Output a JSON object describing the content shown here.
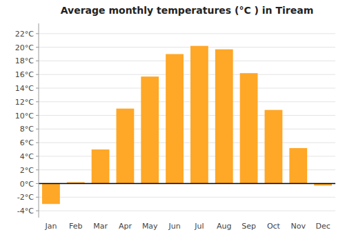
{
  "chart_data": {
    "type": "bar",
    "title": "Average monthly temperatures (°C ) in Tiream",
    "categories": [
      "Jan",
      "Feb",
      "Mar",
      "Apr",
      "May",
      "Jun",
      "Jul",
      "Aug",
      "Sep",
      "Oct",
      "Nov",
      "Dec"
    ],
    "values": [
      -3.0,
      0.2,
      5.0,
      11.0,
      15.7,
      19.0,
      20.2,
      19.7,
      16.2,
      10.8,
      5.2,
      -0.3
    ],
    "color": "#FFA726",
    "ylim": [
      -5.0,
      23.5
    ],
    "yticks": [
      {
        "value": -4,
        "label": "-4°C"
      },
      {
        "value": -2,
        "label": "-2°C"
      },
      {
        "value": 0,
        "label": "0°C"
      },
      {
        "value": 2,
        "label": "2°C"
      },
      {
        "value": 4,
        "label": "4°C"
      },
      {
        "value": 6,
        "label": "6°C"
      },
      {
        "value": 8,
        "label": "8°C"
      },
      {
        "value": 10,
        "label": "10°C"
      },
      {
        "value": 12,
        "label": "12°C"
      },
      {
        "value": 14,
        "label": "14°C"
      },
      {
        "value": 16,
        "label": "16°C"
      },
      {
        "value": 18,
        "label": "18°C"
      },
      {
        "value": 20,
        "label": "20°C"
      },
      {
        "value": 22,
        "label": "22°C"
      }
    ],
    "grid": true
  }
}
